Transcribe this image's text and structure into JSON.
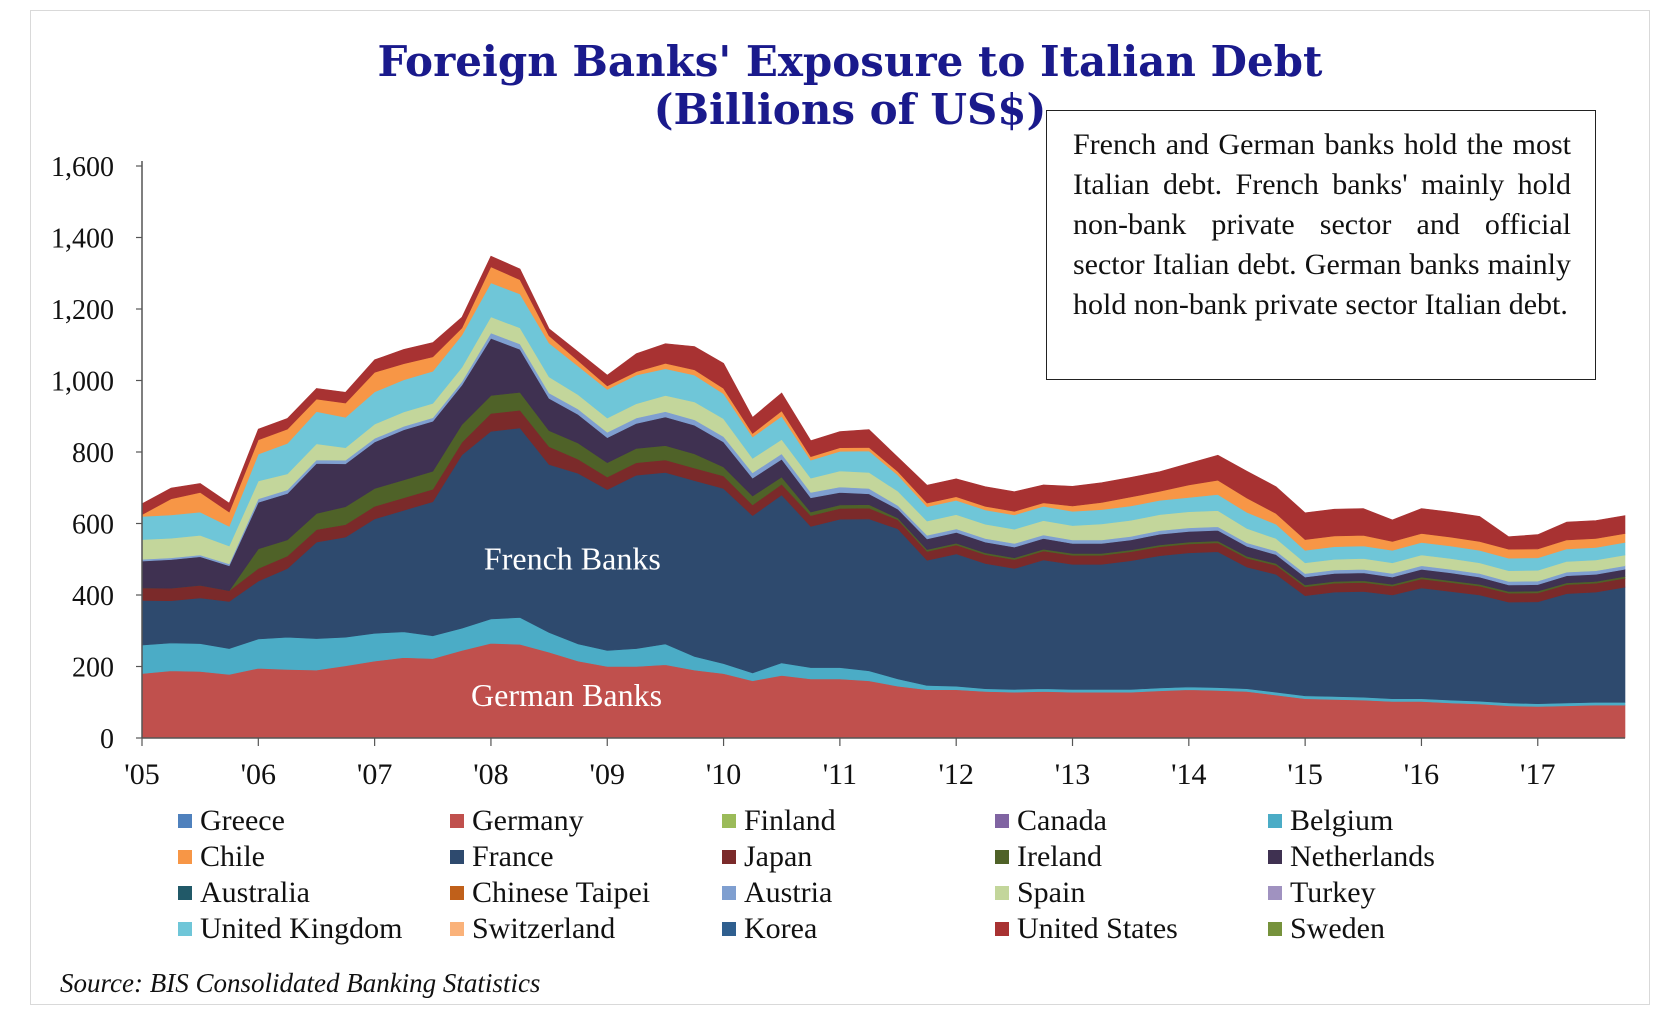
{
  "chart_data": {
    "type": "area",
    "stacked": true,
    "title": "Foreign Banks' Exposure to Italian Debt",
    "subtitle": "(Billions of US$)",
    "ylim": [
      0,
      1600
    ],
    "yticks": [
      0,
      200,
      400,
      600,
      800,
      1000,
      1200,
      1400,
      1600
    ],
    "ytick_labels": [
      "0",
      "200",
      "400",
      "600",
      "800",
      "1,000",
      "1,200",
      "1,400",
      "1,600"
    ],
    "xlim": [
      2005,
      2017.75
    ],
    "xticks": [
      2005,
      2006,
      2007,
      2008,
      2009,
      2010,
      2011,
      2012,
      2013,
      2014,
      2015,
      2016,
      2017
    ],
    "xtick_labels": [
      "'05",
      "'06",
      "'07",
      "'08",
      "'09",
      "'10",
      "'11",
      "'12",
      "'13",
      "'14",
      "'15",
      "'16",
      "'17"
    ],
    "grid": false,
    "x": [
      2005,
      2005.25,
      2005.5,
      2005.75,
      2006,
      2006.25,
      2006.5,
      2006.75,
      2007,
      2007.25,
      2007.5,
      2007.75,
      2008,
      2008.25,
      2008.5,
      2008.75,
      2009,
      2009.25,
      2009.5,
      2009.75,
      2010,
      2010.25,
      2010.5,
      2010.75,
      2011,
      2011.25,
      2011.5,
      2011.75,
      2012,
      2012.25,
      2012.5,
      2012.75,
      2013,
      2013.25,
      2013.5,
      2013.75,
      2014,
      2014.25,
      2014.5,
      2014.75,
      2015,
      2015.25,
      2015.5,
      2015.75,
      2016,
      2016.25,
      2016.5,
      2016.75,
      2017,
      2017.25,
      2017.5,
      2017.75
    ],
    "series": [
      {
        "name": "Germany",
        "color": "#c0504d",
        "values": [
          180,
          188,
          186,
          178,
          195,
          192,
          190,
          202,
          215,
          225,
          222,
          245,
          265,
          262,
          240,
          215,
          200,
          200,
          205,
          190,
          180,
          160,
          175,
          165,
          165,
          160,
          145,
          135,
          135,
          130,
          128,
          130,
          128,
          128,
          128,
          132,
          135,
          133,
          130,
          120,
          110,
          108,
          106,
          102,
          102,
          98,
          95,
          90,
          88,
          90,
          92,
          92
        ]
      },
      {
        "name": "Belgium",
        "color": "#4bacc6",
        "values": [
          80,
          78,
          78,
          72,
          82,
          90,
          88,
          80,
          78,
          72,
          64,
          62,
          68,
          75,
          55,
          48,
          45,
          50,
          58,
          38,
          28,
          22,
          35,
          32,
          32,
          28,
          20,
          12,
          10,
          8,
          8,
          8,
          8,
          8,
          8,
          8,
          8,
          8,
          8,
          8,
          8,
          8,
          8,
          8,
          8,
          8,
          8,
          8,
          8,
          8,
          8,
          8
        ]
      },
      {
        "name": "France",
        "color": "#2e4a6e",
        "values": [
          125,
          118,
          128,
          132,
          162,
          192,
          270,
          280,
          320,
          340,
          375,
          485,
          525,
          530,
          470,
          477,
          450,
          485,
          480,
          492,
          490,
          440,
          470,
          395,
          415,
          425,
          420,
          350,
          370,
          350,
          338,
          360,
          350,
          350,
          360,
          370,
          375,
          380,
          340,
          330,
          280,
          292,
          296,
          290,
          310,
          304,
          297,
          282,
          285,
          306,
          308,
          322
        ]
      },
      {
        "name": "Japan",
        "color": "#7b2a2a",
        "values": [
          35,
          35,
          35,
          30,
          35,
          35,
          35,
          35,
          35,
          35,
          35,
          35,
          50,
          50,
          50,
          40,
          35,
          35,
          35,
          35,
          35,
          30,
          30,
          30,
          30,
          30,
          25,
          25,
          25,
          25,
          25,
          25,
          25,
          25,
          25,
          25,
          25,
          25,
          25,
          25,
          25,
          25,
          25,
          25,
          25,
          25,
          25,
          25,
          25,
          25,
          25,
          25
        ]
      },
      {
        "name": "Ireland",
        "color": "#4f6228",
        "values": [
          0,
          0,
          0,
          0,
          55,
          45,
          45,
          50,
          50,
          50,
          50,
          50,
          50,
          50,
          45,
          45,
          40,
          40,
          40,
          40,
          25,
          25,
          20,
          10,
          10,
          10,
          5,
          5,
          5,
          5,
          5,
          5,
          5,
          5,
          5,
          5,
          5,
          5,
          5,
          5,
          5,
          5,
          5,
          5,
          5,
          5,
          5,
          5,
          5,
          5,
          5,
          5
        ]
      },
      {
        "name": "Netherlands",
        "color": "#3f3151",
        "values": [
          75,
          80,
          80,
          70,
          130,
          130,
          140,
          120,
          130,
          140,
          140,
          110,
          160,
          120,
          90,
          80,
          70,
          70,
          80,
          80,
          70,
          50,
          50,
          40,
          35,
          30,
          25,
          30,
          30,
          30,
          30,
          30,
          28,
          28,
          28,
          30,
          30,
          30,
          28,
          25,
          22,
          22,
          22,
          20,
          22,
          22,
          20,
          18,
          18,
          20,
          20,
          20
        ]
      },
      {
        "name": "Austria",
        "color": "#7f9fd0",
        "values": [
          5,
          5,
          5,
          5,
          10,
          10,
          10,
          10,
          10,
          10,
          10,
          10,
          15,
          15,
          15,
          15,
          15,
          15,
          15,
          15,
          15,
          15,
          15,
          15,
          15,
          15,
          10,
          10,
          10,
          10,
          10,
          10,
          10,
          10,
          10,
          10,
          10,
          10,
          10,
          10,
          10,
          10,
          10,
          10,
          10,
          10,
          10,
          10,
          10,
          10,
          10,
          10
        ]
      },
      {
        "name": "Spain",
        "color": "#c3d69b",
        "values": [
          55,
          55,
          55,
          50,
          50,
          45,
          45,
          35,
          40,
          40,
          40,
          40,
          45,
          45,
          45,
          40,
          40,
          40,
          45,
          50,
          50,
          40,
          40,
          40,
          45,
          45,
          40,
          40,
          40,
          40,
          40,
          40,
          40,
          45,
          45,
          45,
          45,
          45,
          40,
          35,
          30,
          30,
          30,
          30,
          30,
          30,
          30,
          30,
          30,
          30,
          30,
          30
        ]
      },
      {
        "name": "United Kingdom",
        "color": "#6fc6d8",
        "values": [
          65,
          65,
          65,
          55,
          75,
          85,
          90,
          85,
          90,
          90,
          90,
          90,
          95,
          95,
          95,
          80,
          80,
          80,
          75,
          75,
          70,
          60,
          65,
          50,
          55,
          60,
          45,
          40,
          40,
          40,
          40,
          40,
          40,
          40,
          40,
          40,
          40,
          45,
          45,
          40,
          35,
          35,
          35,
          35,
          35,
          35,
          35,
          35,
          35,
          35,
          35,
          35
        ]
      },
      {
        "name": "Chile",
        "color": "#f79646",
        "values": [
          5,
          45,
          55,
          40,
          40,
          40,
          35,
          40,
          55,
          45,
          40,
          20,
          45,
          40,
          20,
          15,
          10,
          10,
          15,
          15,
          15,
          10,
          15,
          10,
          10,
          10,
          10,
          10,
          10,
          10,
          10,
          10,
          15,
          20,
          25,
          25,
          35,
          40,
          40,
          30,
          30,
          30,
          30,
          25,
          25,
          25,
          25,
          25,
          25,
          25,
          25,
          25
        ]
      },
      {
        "name": "United States",
        "color": "#a83232",
        "values": [
          30,
          30,
          25,
          25,
          30,
          30,
          30,
          30,
          35,
          40,
          40,
          30,
          30,
          30,
          20,
          25,
          30,
          50,
          55,
          65,
          70,
          45,
          50,
          45,
          45,
          50,
          40,
          50,
          50,
          55,
          55,
          50,
          55,
          55,
          55,
          55,
          60,
          70,
          75,
          75,
          75,
          75,
          75,
          60,
          70,
          70,
          70,
          35,
          40,
          50,
          50,
          50
        ]
      }
    ],
    "legend": [
      "Greece",
      "Germany",
      "Finland",
      "Canada",
      "Belgium",
      "Chile",
      "France",
      "Japan",
      "Ireland",
      "Netherlands",
      "Australia",
      "Chinese Taipei",
      "Austria",
      "Spain",
      "Turkey",
      "United Kingdom",
      "Switzerland",
      "Korea",
      "United States",
      "Sweden"
    ],
    "legend_placement": "bottom",
    "annotations": [
      {
        "text": "French Banks",
        "x": 2008.7,
        "y": 500
      },
      {
        "text": "German Banks",
        "x": 2008.65,
        "y": 118
      }
    ]
  },
  "legend_items": [
    {
      "label": "Greece",
      "color": "#4f81bd"
    },
    {
      "label": "Germany",
      "color": "#c0504d"
    },
    {
      "label": "Finland",
      "color": "#9bbb59"
    },
    {
      "label": "Canada",
      "color": "#8064a2"
    },
    {
      "label": "Belgium",
      "color": "#4bacc6"
    },
    {
      "label": "Chile",
      "color": "#f79646"
    },
    {
      "label": "France",
      "color": "#2e4a6e"
    },
    {
      "label": "Japan",
      "color": "#7b2a2a"
    },
    {
      "label": "Ireland",
      "color": "#4f6228"
    },
    {
      "label": "Netherlands",
      "color": "#3f3151"
    },
    {
      "label": "Australia",
      "color": "#215968"
    },
    {
      "label": "Chinese Taipei",
      "color": "#c0601a"
    },
    {
      "label": "Austria",
      "color": "#7f9fd0"
    },
    {
      "label": "Spain",
      "color": "#c3d69b"
    },
    {
      "label": "Turkey",
      "color": "#a092c0"
    },
    {
      "label": "United Kingdom",
      "color": "#6fc6d8"
    },
    {
      "label": "Switzerland",
      "color": "#fab27a"
    },
    {
      "label": "Korea",
      "color": "#2f5f8f"
    },
    {
      "label": "United States",
      "color": "#a83232"
    },
    {
      "label": "Sweden",
      "color": "#76923c"
    }
  ],
  "note_text": "French and German banks hold the most Italian debt. French banks' mainly hold non-bank private sector and official sector Italian debt. German banks mainly hold non-bank private sector Italian debt.",
  "source_text": "Source: BIS Consolidated Banking Statistics"
}
